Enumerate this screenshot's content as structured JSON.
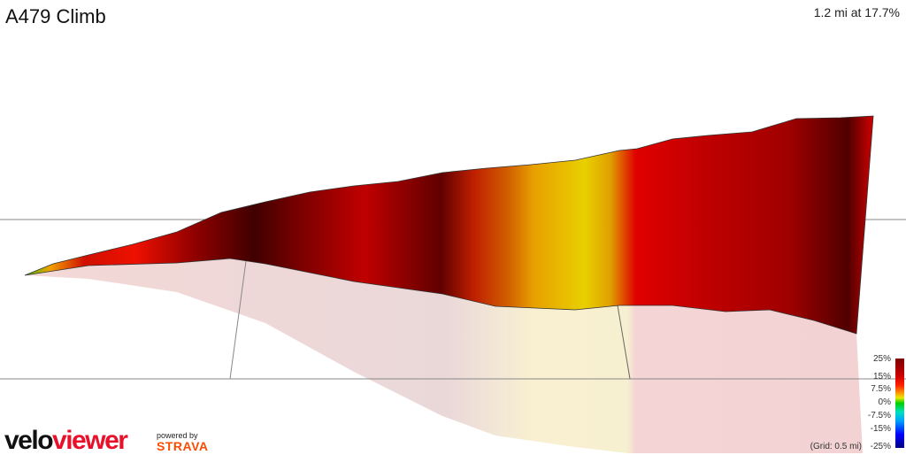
{
  "header": {
    "title": "A479 Climb",
    "summary": "1.2 mi at 17.7%"
  },
  "chart_data": {
    "type": "area",
    "title": "A479 Climb",
    "subtitle": "1.2 mi at 17.7%",
    "style": "3d-gradient-profile",
    "grid": "(Grid: 0.5 mi)",
    "legend": {
      "placement": "bottom-right",
      "ticks": [
        "25%",
        "15%",
        "7.5%",
        "0%",
        "-7.5%",
        "-15%",
        "-25%"
      ],
      "colors": [
        "#7a0000",
        "#d00000",
        "#ff9000",
        "#00d000",
        "#00e0c0",
        "#0000ff",
        "#000080"
      ]
    }
  },
  "branding": {
    "logo_velo": "velo",
    "logo_viewer": "viewer",
    "powered_by": "powered by",
    "strava": "STRAVA",
    "accent": "#e8102a",
    "strava_color": "#fc4c02"
  }
}
